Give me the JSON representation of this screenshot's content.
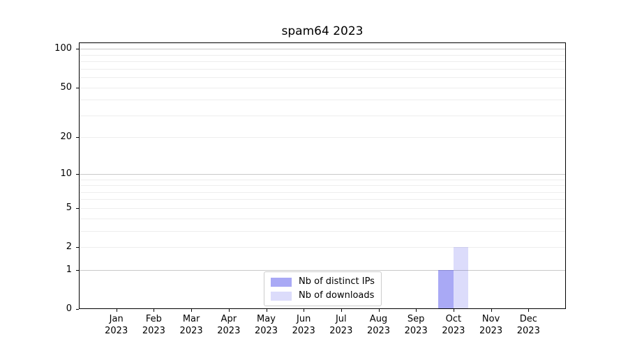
{
  "chart_data": {
    "type": "bar",
    "title": "spam64 2023",
    "categories": [
      {
        "month": "Jan",
        "year": "2023"
      },
      {
        "month": "Feb",
        "year": "2023"
      },
      {
        "month": "Mar",
        "year": "2023"
      },
      {
        "month": "Apr",
        "year": "2023"
      },
      {
        "month": "May",
        "year": "2023"
      },
      {
        "month": "Jun",
        "year": "2023"
      },
      {
        "month": "Jul",
        "year": "2023"
      },
      {
        "month": "Aug",
        "year": "2023"
      },
      {
        "month": "Sep",
        "year": "2023"
      },
      {
        "month": "Oct",
        "year": "2023"
      },
      {
        "month": "Nov",
        "year": "2023"
      },
      {
        "month": "Dec",
        "year": "2023"
      }
    ],
    "series": [
      {
        "name": "Nb of distinct IPs",
        "color": "rgba(40,40,230,0.40)",
        "solid_hex": "#a9a9f5",
        "values": [
          0,
          0,
          0,
          0,
          0,
          0,
          0,
          0,
          0,
          1,
          0,
          0
        ]
      },
      {
        "name": "Nb of downloads",
        "color": "rgba(40,40,230,0.16)",
        "solid_hex": "#dcdcf9",
        "values": [
          0,
          0,
          0,
          0,
          0,
          0,
          0,
          0,
          0,
          2,
          0,
          0
        ]
      }
    ],
    "xlabel": "",
    "ylabel": "",
    "y_ticks": [
      0,
      1,
      2,
      5,
      10,
      20,
      50,
      100
    ],
    "y_scale": "log1p",
    "ylim": [
      0,
      112
    ],
    "grid": {
      "decade_values": [
        1,
        10,
        100
      ],
      "decade_color": "#c9c9c9",
      "minor_values": [
        2,
        3,
        4,
        5,
        6,
        7,
        8,
        9,
        20,
        30,
        40,
        50,
        60,
        70,
        80,
        90
      ],
      "minor_color": "#ededed"
    },
    "legend": {
      "position": "inside-bottom-center",
      "entries": [
        "Nb of distinct IPs",
        "Nb of downloads"
      ]
    },
    "frame_color": "#000000",
    "background_color": "#ffffff"
  }
}
